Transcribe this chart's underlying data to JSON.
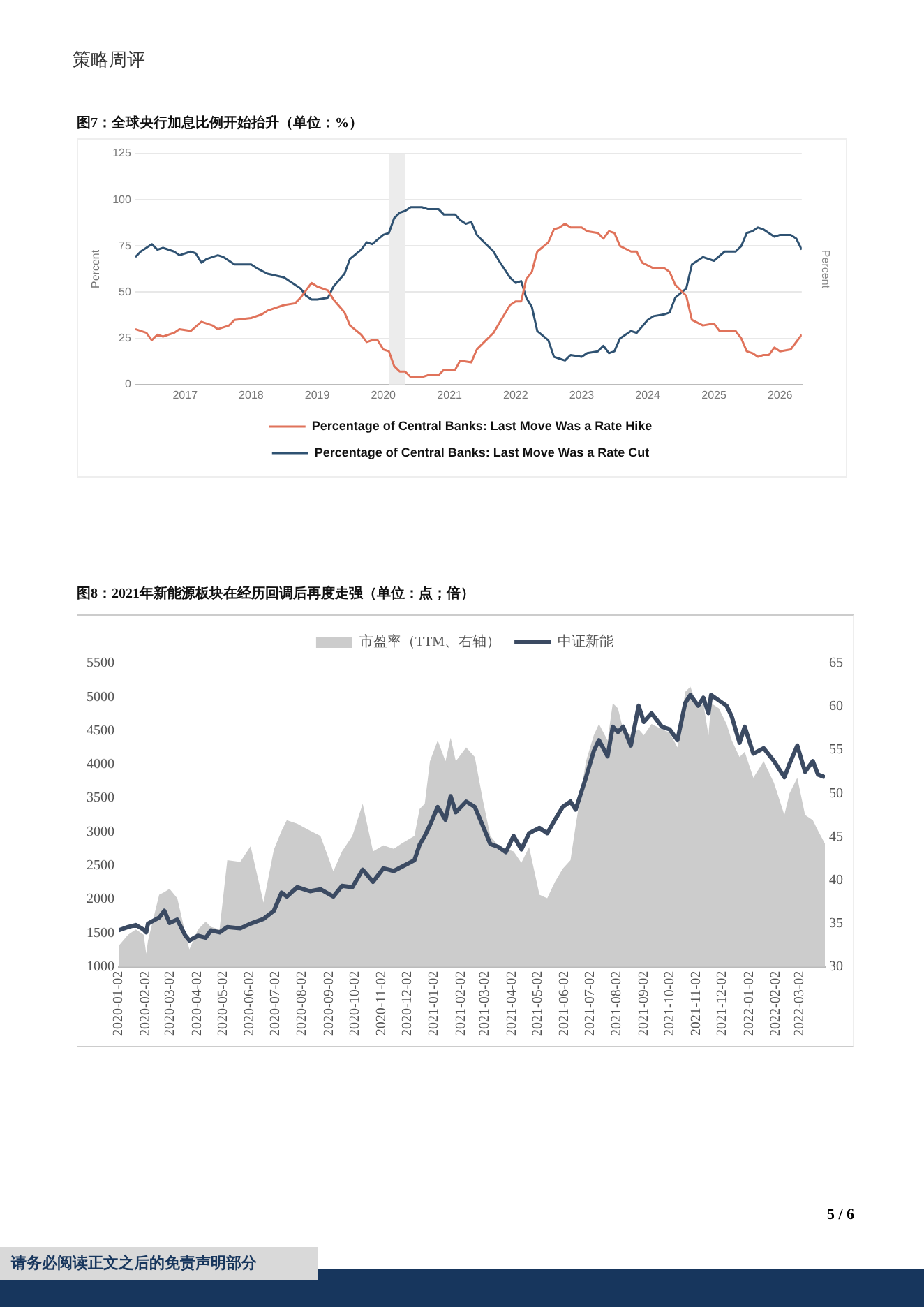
{
  "chart_data": [
    {
      "type": "line",
      "title": "图7：全球央行加息比例开始抬升（单位：%）",
      "ylabel": "Percent",
      "y2label": "Percent",
      "annotations": [
        "策略周评"
      ],
      "xlim": [
        "2016-04",
        "2026-05"
      ],
      "xticks": [
        "2017",
        "2018",
        "2019",
        "2020",
        "2021",
        "2022",
        "2023",
        "2024",
        "2025",
        "2026"
      ],
      "ylim": [
        0,
        125
      ],
      "yticks": [
        0,
        25,
        50,
        75,
        100,
        125
      ],
      "grid": "y",
      "legend": "bottom",
      "marker": "none",
      "bands": [
        {
          "axis": "x",
          "from": "2020-02",
          "to": "2020-05",
          "color": "#ececec"
        }
      ],
      "series": [
        {
          "name": "Percentage of Central Banks: Last Move Was a Rate Hike",
          "color": "#e0735b",
          "x": [
            "2016-04",
            "2016-06",
            "2016-07",
            "2016-08",
            "2016-09",
            "2016-11",
            "2016-12",
            "2017-02",
            "2017-04",
            "2017-06",
            "2017-07",
            "2017-09",
            "2017-10",
            "2018-01",
            "2018-03",
            "2018-04",
            "2018-07",
            "2018-09",
            "2018-10",
            "2018-12",
            "2019-01",
            "2019-03",
            "2019-04",
            "2019-06",
            "2019-07",
            "2019-09",
            "2019-10",
            "2019-11",
            "2019-12",
            "2020-01",
            "2020-02",
            "2020-03",
            "2020-04",
            "2020-05",
            "2020-06",
            "2020-08",
            "2020-09",
            "2020-11",
            "2020-12",
            "2021-02",
            "2021-03",
            "2021-05",
            "2021-06",
            "2021-07",
            "2021-09",
            "2021-10",
            "2021-12",
            "2022-01",
            "2022-02",
            "2022-03",
            "2022-04",
            "2022-05",
            "2022-07",
            "2022-08",
            "2022-09",
            "2022-10",
            "2022-11",
            "2023-01",
            "2023-02",
            "2023-04",
            "2023-05",
            "2023-06",
            "2023-07",
            "2023-08",
            "2023-10",
            "2023-11",
            "2023-12",
            "2024-02",
            "2024-04",
            "2024-05",
            "2024-06",
            "2024-08",
            "2024-09",
            "2024-11",
            "2025-01",
            "2025-02",
            "2025-05",
            "2025-06",
            "2025-07",
            "2025-08",
            "2025-09",
            "2025-10",
            "2025-11",
            "2025-12",
            "2026-01",
            "2026-03",
            "2026-05"
          ],
          "values": [
            30,
            28,
            24,
            27,
            26,
            28,
            30,
            29,
            34,
            32,
            30,
            32,
            35,
            36,
            38,
            40,
            43,
            44,
            47,
            55,
            53,
            51,
            46,
            39,
            32,
            27,
            23,
            24,
            24,
            19,
            18,
            10,
            7,
            7,
            4,
            4,
            5,
            5,
            8,
            8,
            13,
            12,
            19,
            22,
            28,
            33,
            43,
            45,
            45,
            57,
            61,
            72,
            77,
            84,
            85,
            87,
            85,
            85,
            83,
            82,
            79,
            83,
            82,
            75,
            72,
            72,
            66,
            63,
            63,
            61,
            54,
            48,
            35,
            32,
            33,
            29,
            29,
            25,
            18,
            17,
            15,
            16,
            16,
            20,
            18,
            19,
            27
          ]
        },
        {
          "name": "Percentage of Central Banks: Last Move Was a Rate Cut",
          "color": "#2f5272",
          "x": [
            "2016-04",
            "2016-05",
            "2016-07",
            "2016-08",
            "2016-09",
            "2016-11",
            "2016-12",
            "2017-02",
            "2017-03",
            "2017-04",
            "2017-05",
            "2017-07",
            "2017-08",
            "2017-10",
            "2018-01",
            "2018-02",
            "2018-04",
            "2018-07",
            "2018-09",
            "2018-10",
            "2018-11",
            "2018-12",
            "2019-01",
            "2019-03",
            "2019-04",
            "2019-06",
            "2019-07",
            "2019-09",
            "2019-10",
            "2019-11",
            "2020-01",
            "2020-02",
            "2020-03",
            "2020-04",
            "2020-05",
            "2020-06",
            "2020-08",
            "2020-09",
            "2020-11",
            "2020-12",
            "2021-02",
            "2021-03",
            "2021-04",
            "2021-05",
            "2021-06",
            "2021-07",
            "2021-09",
            "2021-10",
            "2021-12",
            "2022-01",
            "2022-02",
            "2022-03",
            "2022-04",
            "2022-05",
            "2022-07",
            "2022-08",
            "2022-09",
            "2022-10",
            "2022-11",
            "2023-01",
            "2023-02",
            "2023-04",
            "2023-05",
            "2023-06",
            "2023-07",
            "2023-08",
            "2023-10",
            "2023-11",
            "2024-01",
            "2024-02",
            "2024-04",
            "2024-05",
            "2024-06",
            "2024-08",
            "2024-09",
            "2024-11",
            "2025-01",
            "2025-03",
            "2025-05",
            "2025-06",
            "2025-07",
            "2025-08",
            "2025-09",
            "2025-10",
            "2025-12",
            "2026-01",
            "2026-03",
            "2026-04",
            "2026-05"
          ],
          "values": [
            69,
            72,
            76,
            73,
            74,
            72,
            70,
            72,
            71,
            66,
            68,
            70,
            69,
            65,
            65,
            63,
            60,
            58,
            54,
            52,
            48,
            46,
            46,
            47,
            53,
            60,
            68,
            73,
            77,
            76,
            81,
            82,
            90,
            93,
            94,
            96,
            96,
            95,
            95,
            92,
            92,
            89,
            87,
            88,
            81,
            78,
            72,
            67,
            58,
            55,
            56,
            47,
            42,
            29,
            24,
            15,
            14,
            13,
            16,
            15,
            17,
            18,
            21,
            17,
            18,
            25,
            29,
            28,
            35,
            37,
            38,
            39,
            47,
            52,
            65,
            69,
            67,
            72,
            72,
            75,
            82,
            83,
            85,
            84,
            80,
            81,
            81,
            79,
            73
          ]
        }
      ]
    },
    {
      "type": "line",
      "title": "图8：2021年新能源板块在经历回调后再度走强（单位：点；倍）",
      "annotations": [
        "请务必阅读正文之后的免责声明部分",
        "5 / 6"
      ],
      "x": [
        "2020-01-02",
        "2020-01-13",
        "2020-01-22",
        "2020-01-31",
        "2020-02-03",
        "2020-02-05",
        "2020-02-18",
        "2020-02-24",
        "2020-03-01",
        "2020-03-10",
        "2020-03-19",
        "2020-03-24",
        "2020-04-03",
        "2020-04-12",
        "2020-04-18",
        "2020-04-28",
        "2020-05-07",
        "2020-05-22",
        "2020-06-03",
        "2020-06-18",
        "2020-06-30",
        "2020-07-09",
        "2020-07-15",
        "2020-07-27",
        "2020-08-11",
        "2020-08-23",
        "2020-09-07",
        "2020-09-17",
        "2020-09-29",
        "2020-10-11",
        "2020-10-23",
        "2020-11-04",
        "2020-11-16",
        "2020-11-25",
        "2020-12-10",
        "2020-12-16",
        "2020-12-22",
        "2020-12-28",
        "2021-01-06",
        "2021-01-15",
        "2021-01-21",
        "2021-01-27",
        "2021-02-08",
        "2021-02-18",
        "2021-02-27",
        "2021-03-08",
        "2021-03-17",
        "2021-03-26",
        "2021-04-04",
        "2021-04-13",
        "2021-04-22",
        "2021-05-04",
        "2021-05-13",
        "2021-05-22",
        "2021-05-31",
        "2021-06-09",
        "2021-06-15",
        "2021-06-27",
        "2021-07-06",
        "2021-07-12",
        "2021-07-22",
        "2021-07-28",
        "2021-08-03",
        "2021-08-09",
        "2021-08-18",
        "2021-08-27",
        "2021-09-02",
        "2021-09-11",
        "2021-09-23",
        "2021-10-02",
        "2021-10-11",
        "2021-10-20",
        "2021-10-26",
        "2021-11-04",
        "2021-11-10",
        "2021-11-16",
        "2021-11-19",
        "2021-11-28",
        "2021-12-07",
        "2021-12-13",
        "2021-12-22",
        "2021-12-28",
        "2022-01-07",
        "2022-01-19",
        "2022-01-31",
        "2022-02-12",
        "2022-02-18",
        "2022-02-27",
        "2022-03-08",
        "2022-03-17",
        "2022-03-23",
        "2022-03-31"
      ],
      "xlim": [
        "2020-01-02",
        "2022-03-31"
      ],
      "xticks": [
        "2020-01-02",
        "2020-02-02",
        "2020-03-02",
        "2020-04-02",
        "2020-05-02",
        "2020-06-02",
        "2020-07-02",
        "2020-08-02",
        "2020-09-02",
        "2020-10-02",
        "2020-11-02",
        "2020-12-02",
        "2021-01-02",
        "2021-02-02",
        "2021-03-02",
        "2021-04-02",
        "2021-05-02",
        "2021-06-02",
        "2021-07-02",
        "2021-08-02",
        "2021-09-02",
        "2021-10-02",
        "2021-11-02",
        "2021-12-02",
        "2022-01-02",
        "2022-02-02",
        "2022-03-02"
      ],
      "ylim": [
        1000,
        5500
      ],
      "yticks": [
        1000,
        1500,
        2000,
        2500,
        3000,
        3500,
        4000,
        4500,
        5000,
        5500
      ],
      "y2lim": [
        30,
        65
      ],
      "y2ticks": [
        30,
        35,
        40,
        45,
        50,
        55,
        60,
        65
      ],
      "legend": "top",
      "marker": "none",
      "series": [
        {
          "name": "市盈率（TTM、右轴）",
          "type": "area",
          "axis": "y2",
          "color": "#cccccc",
          "values": [
            32.4,
            33.7,
            34.3,
            33.7,
            31.5,
            33,
            38.3,
            38.6,
            39,
            37.9,
            34,
            32,
            34.3,
            35.2,
            34.6,
            34.3,
            42.3,
            42.1,
            43.9,
            37.4,
            43.5,
            45.7,
            46.9,
            46.5,
            45.7,
            45.1,
            41,
            43.3,
            45.1,
            48.8,
            43.3,
            44,
            43.6,
            44.2,
            45.1,
            48.2,
            48.8,
            53.7,
            56.1,
            53.7,
            56.4,
            53.7,
            55.3,
            54.2,
            49.4,
            45.1,
            44,
            43.6,
            43.3,
            42,
            43.8,
            38.3,
            37.9,
            39.8,
            41.3,
            42.3,
            46.3,
            53.7,
            56.7,
            58,
            56.1,
            60.4,
            59.8,
            57.4,
            56.7,
            57.4,
            56.7,
            58,
            57.4,
            57,
            55.3,
            61.7,
            62.3,
            59.8,
            60.4,
            56.7,
            60.4,
            59.8,
            58,
            56.1,
            54.2,
            54.8,
            51.8,
            53.7,
            51.2,
            47.5,
            50,
            51.8,
            47.5,
            46.9,
            45.7,
            44.2
          ]
        },
        {
          "name": "中证新能",
          "color": "#3b4a62",
          "values": [
            1540,
            1590,
            1620,
            1550,
            1510,
            1640,
            1730,
            1830,
            1650,
            1700,
            1470,
            1390,
            1460,
            1430,
            1540,
            1510,
            1590,
            1570,
            1640,
            1710,
            1830,
            2100,
            2040,
            2180,
            2120,
            2150,
            2040,
            2200,
            2180,
            2440,
            2260,
            2460,
            2420,
            2480,
            2580,
            2810,
            2940,
            3100,
            3370,
            3180,
            3530,
            3290,
            3450,
            3370,
            3100,
            2820,
            2780,
            2700,
            2940,
            2740,
            2980,
            3060,
            2980,
            3180,
            3370,
            3450,
            3330,
            3810,
            4200,
            4360,
            4120,
            4560,
            4480,
            4560,
            4280,
            4870,
            4630,
            4760,
            4560,
            4520,
            4360,
            4910,
            5030,
            4870,
            4990,
            4760,
            5030,
            4950,
            4870,
            4710,
            4320,
            4560,
            4160,
            4240,
            4050,
            3810,
            4010,
            4280,
            3890,
            4050,
            3850,
            3810
          ]
        }
      ]
    }
  ]
}
